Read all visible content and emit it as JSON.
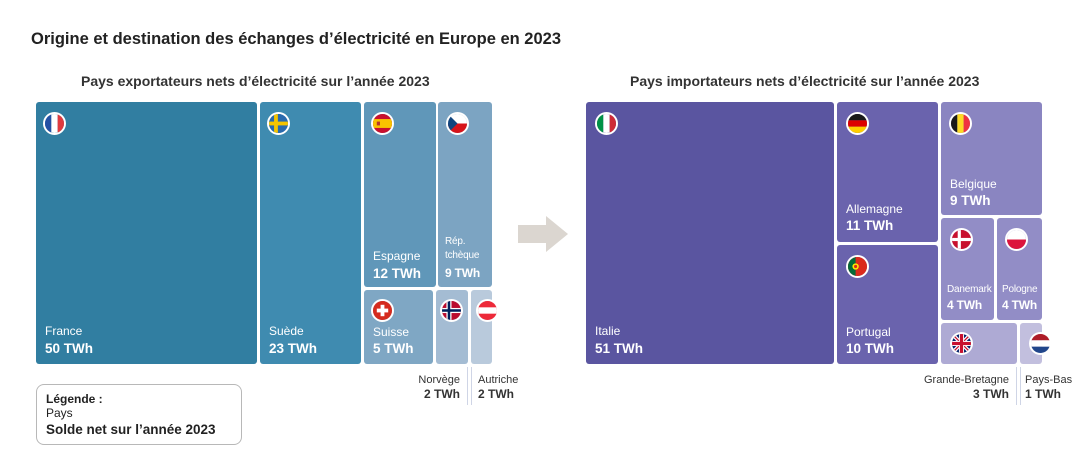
{
  "title": "Origine et destination des échanges d’électricité en Europe en 2023",
  "colors": {
    "exporter": "#3a82a3",
    "importer": "#5a55a0",
    "arrow": "#dbd6d0"
  },
  "chart_data": [
    {
      "type": "treemap",
      "title": "Pays exportateurs nets d’électricité sur l’année 2023",
      "unit": "TWh",
      "items": [
        {
          "name": "France",
          "value": 50,
          "label": "50 TWh",
          "flag": "france-flag"
        },
        {
          "name": "Suède",
          "value": 23,
          "label": "23 TWh",
          "flag": "sweden-flag"
        },
        {
          "name": "Espagne",
          "value": 12,
          "label": "12 TWh",
          "flag": "spain-flag"
        },
        {
          "name": "Rép. tchèque",
          "name_lines": [
            "Rép.",
            "tchèque"
          ],
          "value": 9,
          "label": "9 TWh",
          "flag": "czech-flag"
        },
        {
          "name": "Suisse",
          "value": 5,
          "label": "5 TWh",
          "flag": "switzerland-flag"
        },
        {
          "name": "Norvège",
          "value": 2,
          "label": "2 TWh",
          "flag": "norway-flag"
        },
        {
          "name": "Autriche",
          "value": 2,
          "label": "2 TWh",
          "flag": "austria-flag"
        }
      ]
    },
    {
      "type": "treemap",
      "title": "Pays importateurs nets d’électricité sur l’année 2023",
      "unit": "TWh",
      "items": [
        {
          "name": "Italie",
          "value": 51,
          "label": "51 TWh",
          "flag": "italy-flag"
        },
        {
          "name": "Allemagne",
          "value": 11,
          "label": "11 TWh",
          "flag": "germany-flag"
        },
        {
          "name": "Portugal",
          "value": 10,
          "label": "10 TWh",
          "flag": "portugal-flag"
        },
        {
          "name": "Belgique",
          "value": 9,
          "label": "9 TWh",
          "flag": "belgium-flag"
        },
        {
          "name": "Danemark",
          "value": 4,
          "label": "4 TWh",
          "flag": "denmark-flag"
        },
        {
          "name": "Pologne",
          "value": 4,
          "label": "4 TWh",
          "flag": "poland-flag"
        },
        {
          "name": "Grande-Bretagne",
          "value": 3,
          "label": "3 TWh",
          "flag": "uk-flag"
        },
        {
          "name": "Pays-Bas",
          "value": 1,
          "label": "1 TWh",
          "flag": "netherlands-flag"
        }
      ]
    }
  ],
  "legend": {
    "title": "Légende :",
    "country": "Pays",
    "balance": "Solde net sur l’année 2023"
  }
}
